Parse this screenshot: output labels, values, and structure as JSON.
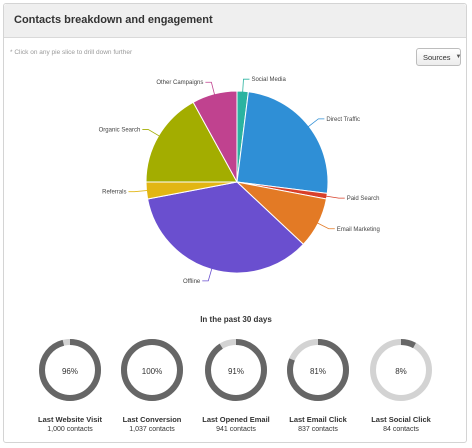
{
  "panel": {
    "title": "Contacts breakdown and engagement",
    "hint": "* Click on any pie slice to drill down further",
    "dropdown": {
      "selected": "Sources",
      "icon": "chevron-down-icon"
    }
  },
  "chart_data": {
    "type": "pie",
    "slices": [
      {
        "label": "Social Media",
        "value": 2,
        "color": "#2bb3a0"
      },
      {
        "label": "Direct Traffic",
        "value": 25,
        "color": "#2f8fd6"
      },
      {
        "label": "Paid Search",
        "value": 1,
        "color": "#d8402a"
      },
      {
        "label": "Email Marketing",
        "value": 9,
        "color": "#e37a25"
      },
      {
        "label": "Offline",
        "value": 35,
        "color": "#6a4fcf"
      },
      {
        "label": "Referrals",
        "value": 3,
        "color": "#e2b613"
      },
      {
        "label": "Organic Search",
        "value": 17,
        "color": "#a3ad00"
      },
      {
        "label": "Other Campaigns",
        "value": 8,
        "color": "#c0428f"
      }
    ]
  },
  "engagement": {
    "title": "In the past 30 days",
    "ring_color": "#666666",
    "track_color": "#d3d3d3",
    "items": [
      {
        "percent": 96,
        "percent_label": "96%",
        "title": "Last Website Visit",
        "subtitle": "1,000 contacts"
      },
      {
        "percent": 100,
        "percent_label": "100%",
        "title": "Last Conversion",
        "subtitle": "1,037 contacts"
      },
      {
        "percent": 91,
        "percent_label": "91%",
        "title": "Last Opened Email",
        "subtitle": "941 contacts"
      },
      {
        "percent": 81,
        "percent_label": "81%",
        "title": "Last Email Click",
        "subtitle": "837 contacts"
      },
      {
        "percent": 8,
        "percent_label": "8%",
        "title": "Last Social Click",
        "subtitle": "84 contacts"
      }
    ]
  }
}
